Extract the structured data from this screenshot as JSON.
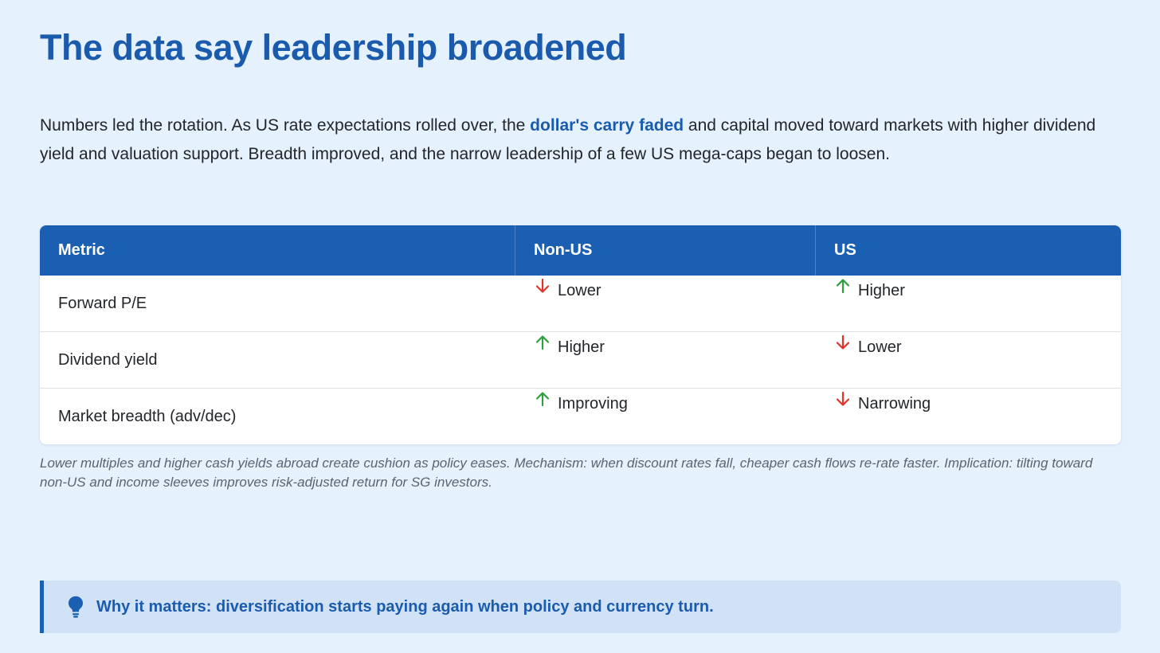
{
  "title": "The data say leadership broadened",
  "intro": {
    "before": "Numbers led the rotation. As US rate expectations rolled over, the ",
    "link": "dollar's carry faded",
    "after": " and capital moved toward markets with higher dividend yield and valuation support. Breadth improved, and the narrow leadership of a few US mega-caps began to loosen."
  },
  "table": {
    "headers": [
      "Metric",
      "Non-US",
      "US"
    ],
    "rows": [
      {
        "metric": "Forward P/E",
        "non_us": {
          "label": "Lower",
          "direction": "down"
        },
        "us": {
          "label": "Higher",
          "direction": "up"
        }
      },
      {
        "metric": "Dividend yield",
        "non_us": {
          "label": "Higher",
          "direction": "up"
        },
        "us": {
          "label": "Lower",
          "direction": "down"
        }
      },
      {
        "metric": "Market breadth (adv/dec)",
        "non_us": {
          "label": "Improving",
          "direction": "up"
        },
        "us": {
          "label": "Narrowing",
          "direction": "down"
        }
      }
    ]
  },
  "caption": "Lower multiples and higher cash yields abroad create cushion as policy eases. Mechanism: when discount rates fall, cheaper cash flows re-rate faster. Implication: tilting toward non-US and income sleeves improves risk-adjusted return for SG investors.",
  "callout": {
    "icon": "lightbulb-icon",
    "text": "Why it matters: diversification starts paying again when policy and currency turn."
  },
  "colors": {
    "accent": "#1b5bae",
    "header_bg": "#1b5fb3",
    "up": "#2e9e3e",
    "down": "#e0342a",
    "page_bg": "#e5f1fc"
  }
}
